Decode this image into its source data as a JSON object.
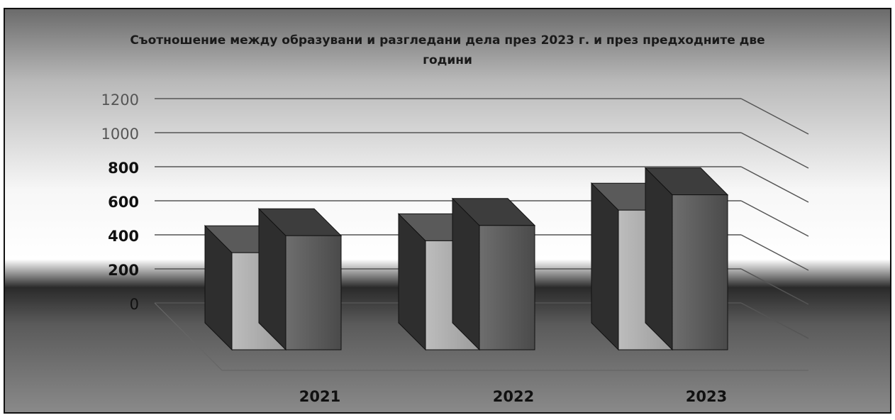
{
  "chart_data": {
    "type": "bar",
    "title": "Съотношение между образувани и разгледани дела през 2023 г. и през предходните две години",
    "title_lines": [
      "Съотношение между образувани и разгледани дела през 2023 г. и през предходните две",
      "години"
    ],
    "xlabel": "",
    "ylabel": "",
    "categories": [
      "2021",
      "2022",
      "2023"
    ],
    "series": [
      {
        "values": [
          570,
          640,
          820
        ]
      },
      {
        "values": [
          670,
          730,
          910
        ]
      }
    ],
    "ylim": [
      0,
      1200
    ],
    "yticks": [
      0,
      200,
      400,
      600,
      800,
      1000,
      1200
    ],
    "grid": true,
    "legend": "none",
    "style": "3d-column"
  }
}
